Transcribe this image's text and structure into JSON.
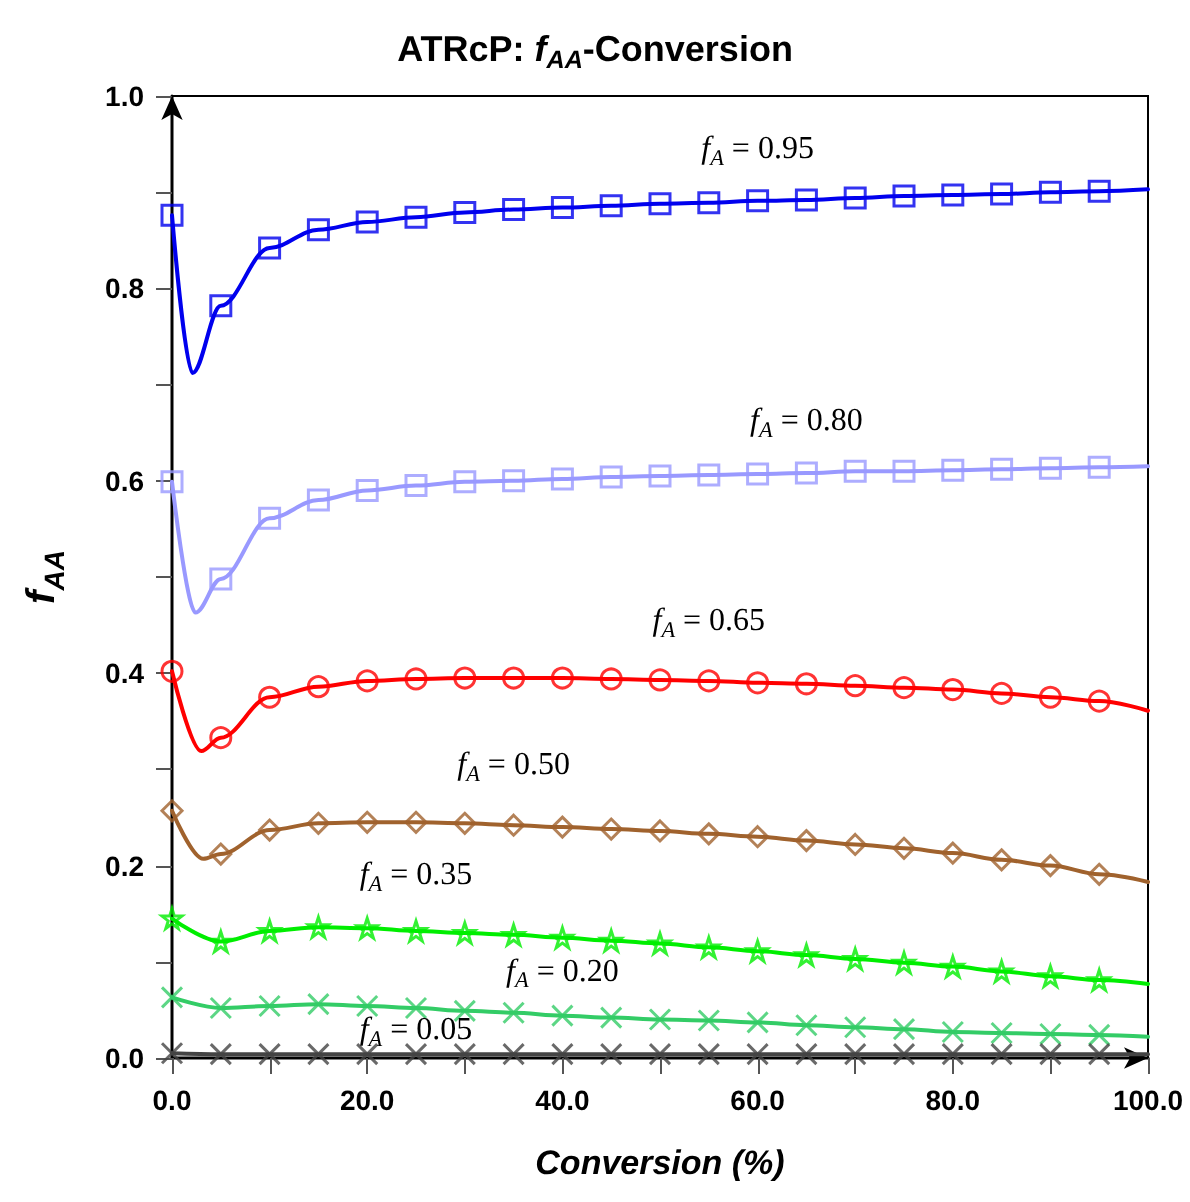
{
  "chart_data": {
    "type": "line",
    "title": "ATRcP: f$_{AA}$-Conversion",
    "xlabel": "Conversion (%)",
    "ylabel": "f$_{AA}$",
    "xlim": [
      0,
      100
    ],
    "ylim": [
      0,
      1.0
    ],
    "xticks": [
      {
        "value": 0,
        "label": "0.0"
      },
      {
        "value": 10,
        "label": null
      },
      {
        "value": 20,
        "label": "20.0"
      },
      {
        "value": 30,
        "label": null
      },
      {
        "value": 40,
        "label": "40.0"
      },
      {
        "value": 50,
        "label": null
      },
      {
        "value": 60,
        "label": "60.0"
      },
      {
        "value": 70,
        "label": null
      },
      {
        "value": 80,
        "label": "80.0"
      },
      {
        "value": 90,
        "label": null
      },
      {
        "value": 100,
        "label": "100.0"
      }
    ],
    "yticks": [
      {
        "value": 0,
        "label": "0.0"
      },
      {
        "value": 0.1,
        "label": null
      },
      {
        "value": 0.2,
        "label": "0.2"
      },
      {
        "value": 0.3,
        "label": null
      },
      {
        "value": 0.4,
        "label": "0.4"
      },
      {
        "value": 0.5,
        "label": null
      },
      {
        "value": 0.6,
        "label": "0.6"
      },
      {
        "value": 0.7,
        "label": null
      },
      {
        "value": 0.8,
        "label": "0.8"
      },
      {
        "value": 0.9,
        "label": null
      },
      {
        "value": 1.0,
        "label": "1.0"
      }
    ],
    "series": [
      {
        "type": "line",
        "marker": "none",
        "name": "f$_{A}$ = 0.95",
        "color": "#0000ee",
        "x": [
          0,
          2.1,
          5,
          10,
          15,
          20,
          25,
          30,
          35,
          40,
          45,
          50,
          55,
          60,
          65,
          70,
          75,
          80,
          85,
          90,
          95,
          100
        ],
        "values": [
          0.876,
          0.712,
          0.782,
          0.842,
          0.861,
          0.869,
          0.874,
          0.879,
          0.882,
          0.884,
          0.886,
          0.888,
          0.889,
          0.891,
          0.892,
          0.894,
          0.896,
          0.897,
          0.898,
          0.9,
          0.901,
          0.903
        ]
      },
      {
        "type": "line",
        "marker": "none",
        "name": "f$_{A}$ = 0.80",
        "color": "#9999ff",
        "x": [
          0,
          2.4,
          5,
          10,
          15,
          20,
          25,
          30,
          35,
          40,
          45,
          50,
          55,
          60,
          65,
          70,
          75,
          80,
          85,
          90,
          95,
          100
        ],
        "values": [
          0.599,
          0.463,
          0.498,
          0.561,
          0.58,
          0.59,
          0.595,
          0.599,
          0.6,
          0.602,
          0.604,
          0.605,
          0.606,
          0.607,
          0.608,
          0.61,
          0.61,
          0.611,
          0.612,
          0.613,
          0.614,
          0.615
        ]
      },
      {
        "type": "line",
        "marker": "none",
        "name": "f$_{A}$ = 0.65",
        "color": "#ff0000",
        "x": [
          0,
          3,
          5,
          10,
          15,
          20,
          25,
          30,
          35,
          40,
          45,
          50,
          55,
          60,
          65,
          70,
          75,
          80,
          85,
          90,
          95,
          100
        ],
        "values": [
          0.402,
          0.319,
          0.333,
          0.375,
          0.386,
          0.392,
          0.394,
          0.395,
          0.395,
          0.395,
          0.394,
          0.393,
          0.392,
          0.39,
          0.389,
          0.387,
          0.385,
          0.383,
          0.379,
          0.375,
          0.371,
          0.361
        ]
      },
      {
        "type": "line",
        "marker": "none",
        "name": "f$_{A}$ = 0.50",
        "color": "#a0622d",
        "x": [
          0,
          3.2,
          5,
          10,
          15,
          20,
          25,
          30,
          35,
          40,
          45,
          50,
          55,
          60,
          65,
          70,
          75,
          80,
          85,
          90,
          95,
          100
        ],
        "values": [
          0.257,
          0.207,
          0.212,
          0.237,
          0.244,
          0.245,
          0.245,
          0.244,
          0.242,
          0.24,
          0.238,
          0.236,
          0.233,
          0.23,
          0.226,
          0.222,
          0.218,
          0.213,
          0.206,
          0.2,
          0.191,
          0.183
        ]
      },
      {
        "type": "line",
        "marker": "none",
        "name": "f$_{A}$ = 0.35",
        "color": "#00ee00",
        "x": [
          0,
          5,
          10,
          15,
          20,
          25,
          30,
          35,
          40,
          45,
          50,
          55,
          60,
          65,
          70,
          75,
          80,
          85,
          90,
          95,
          100
        ],
        "values": [
          0.145,
          0.121,
          0.132,
          0.136,
          0.135,
          0.132,
          0.13,
          0.128,
          0.125,
          0.122,
          0.119,
          0.115,
          0.111,
          0.107,
          0.103,
          0.099,
          0.095,
          0.09,
          0.085,
          0.081,
          0.077
        ]
      },
      {
        "type": "line",
        "marker": "none",
        "name": "f$_{A}$ = 0.20",
        "color": "#33cc66",
        "x": [
          0,
          5,
          10,
          15,
          20,
          25,
          30,
          35,
          40,
          45,
          50,
          55,
          60,
          65,
          70,
          75,
          80,
          85,
          90,
          95,
          100
        ],
        "values": [
          0.063,
          0.052,
          0.054,
          0.056,
          0.054,
          0.052,
          0.049,
          0.047,
          0.044,
          0.042,
          0.04,
          0.039,
          0.037,
          0.034,
          0.032,
          0.03,
          0.027,
          0.026,
          0.025,
          0.024,
          0.022
        ]
      },
      {
        "type": "line",
        "marker": "none",
        "name": "f$_{A}$ = 0.05",
        "color": "#444444",
        "x": [
          0,
          5,
          10,
          15,
          20,
          25,
          30,
          35,
          40,
          45,
          50,
          55,
          60,
          65,
          70,
          75,
          80,
          85,
          90,
          95,
          100
        ],
        "values": [
          0.005,
          0.004,
          0.004,
          0.004,
          0.004,
          0.004,
          0.004,
          0.004,
          0.004,
          0.004,
          0.004,
          0.004,
          0.004,
          0.004,
          0.004,
          0.004,
          0.004,
          0.004,
          0.004,
          0.004,
          0.004
        ]
      },
      {
        "type": "scatter",
        "marker": "square",
        "color": "#0000ee",
        "x": [
          0,
          5,
          10,
          15,
          20,
          25,
          30,
          35,
          40,
          45,
          50,
          55,
          60,
          65,
          70,
          75,
          80,
          85,
          90,
          95
        ],
        "values": [
          0.876,
          0.782,
          0.842,
          0.861,
          0.869,
          0.874,
          0.879,
          0.882,
          0.884,
          0.886,
          0.888,
          0.889,
          0.891,
          0.892,
          0.894,
          0.896,
          0.897,
          0.898,
          0.9,
          0.901
        ]
      },
      {
        "type": "scatter",
        "marker": "square",
        "color": "#9999ff",
        "x": [
          0,
          5,
          10,
          15,
          20,
          25,
          30,
          35,
          40,
          45,
          50,
          55,
          60,
          65,
          70,
          75,
          80,
          85,
          90,
          95
        ],
        "values": [
          0.599,
          0.498,
          0.561,
          0.58,
          0.59,
          0.595,
          0.599,
          0.6,
          0.602,
          0.604,
          0.605,
          0.606,
          0.607,
          0.608,
          0.61,
          0.61,
          0.611,
          0.612,
          0.613,
          0.614
        ]
      },
      {
        "type": "scatter",
        "marker": "circle",
        "color": "#ff0000",
        "x": [
          0,
          5,
          10,
          15,
          20,
          25,
          30,
          35,
          40,
          45,
          50,
          55,
          60,
          65,
          70,
          75,
          80,
          85,
          90,
          95
        ],
        "values": [
          0.402,
          0.333,
          0.375,
          0.386,
          0.392,
          0.394,
          0.395,
          0.395,
          0.395,
          0.394,
          0.393,
          0.392,
          0.39,
          0.389,
          0.387,
          0.385,
          0.383,
          0.379,
          0.375,
          0.371
        ]
      },
      {
        "type": "scatter",
        "marker": "diamond",
        "color": "#a0622d",
        "x": [
          0,
          5,
          10,
          15,
          20,
          25,
          30,
          35,
          40,
          45,
          50,
          55,
          60,
          65,
          70,
          75,
          80,
          85,
          90,
          95
        ],
        "values": [
          0.257,
          0.212,
          0.237,
          0.244,
          0.245,
          0.245,
          0.244,
          0.242,
          0.24,
          0.238,
          0.236,
          0.233,
          0.23,
          0.226,
          0.222,
          0.218,
          0.213,
          0.206,
          0.2,
          0.191
        ]
      },
      {
        "type": "scatter",
        "marker": "star",
        "color": "#00ee00",
        "x": [
          0,
          5,
          10,
          15,
          20,
          25,
          30,
          35,
          40,
          45,
          50,
          55,
          60,
          65,
          70,
          75,
          80,
          85,
          90,
          95
        ],
        "values": [
          0.145,
          0.121,
          0.132,
          0.136,
          0.135,
          0.132,
          0.13,
          0.128,
          0.125,
          0.122,
          0.119,
          0.115,
          0.111,
          0.107,
          0.103,
          0.099,
          0.095,
          0.09,
          0.085,
          0.081
        ]
      },
      {
        "type": "scatter",
        "marker": "cross",
        "color": "#33cc66",
        "x": [
          0,
          5,
          10,
          15,
          20,
          25,
          30,
          35,
          40,
          45,
          50,
          55,
          60,
          65,
          70,
          75,
          80,
          85,
          90,
          95
        ],
        "values": [
          0.063,
          0.052,
          0.054,
          0.056,
          0.054,
          0.052,
          0.049,
          0.047,
          0.044,
          0.042,
          0.04,
          0.039,
          0.037,
          0.034,
          0.032,
          0.03,
          0.027,
          0.026,
          0.025,
          0.024
        ]
      },
      {
        "type": "scatter",
        "marker": "cross",
        "color": "#444444",
        "x": [
          0,
          5,
          10,
          15,
          20,
          25,
          30,
          35,
          40,
          45,
          50,
          55,
          60,
          65,
          70,
          75,
          80,
          85,
          90,
          95
        ],
        "values": [
          0.005,
          0.004,
          0.004,
          0.004,
          0.004,
          0.004,
          0.004,
          0.004,
          0.004,
          0.004,
          0.004,
          0.004,
          0.004,
          0.004,
          0.004,
          0.004,
          0.004,
          0.004,
          0.004,
          0.004
        ]
      }
    ]
  }
}
